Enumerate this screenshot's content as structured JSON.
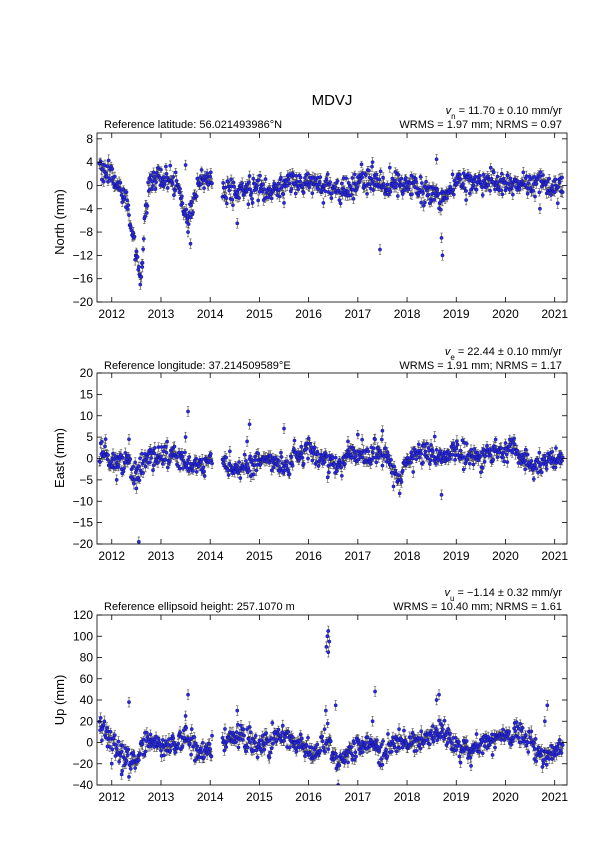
{
  "station": "MDVJ",
  "panels": [
    {
      "id": "north",
      "reference_text": "Reference latitude: 56.021493986°N",
      "velocity_symbol": "v",
      "velocity_subscript": "n",
      "velocity_rest": " = 11.70 ± 0.10 mm/yr",
      "rms_text": "WRMS = 1.97 mm; NRMS = 0.97",
      "ylabel": "North (mm)"
    },
    {
      "id": "east",
      "reference_text": "Reference longitude: 37.214509589°E",
      "velocity_symbol": "v",
      "velocity_subscript": "e",
      "velocity_rest": " = 22.44 ± 0.10 mm/yr",
      "rms_text": "WRMS = 1.91 mm; NRMS = 1.17",
      "ylabel": "East (mm)"
    },
    {
      "id": "up",
      "reference_text": "Reference ellipsoid height: 257.1070 m",
      "velocity_symbol": "v",
      "velocity_subscript": "u",
      "velocity_rest": " = −1.14 ± 0.32 mm/yr",
      "rms_text": "WRMS = 10.40 mm; NRMS = 1.61",
      "ylabel": "Up (mm)"
    }
  ],
  "chart_data": [
    {
      "type": "scatter",
      "panel": "north",
      "title": "MDVJ",
      "ylabel": "North (mm)",
      "xlim": [
        2011.7,
        2021.25
      ],
      "ylim": [
        -20,
        9
      ],
      "xticks": [
        2012,
        2013,
        2014,
        2015,
        2016,
        2017,
        2018,
        2019,
        2020,
        2021
      ],
      "yticks": [
        -20,
        -16,
        -12,
        -8,
        -4,
        0,
        4,
        8
      ],
      "error_bars": true,
      "gaps": [
        [
          2014.05,
          2014.25
        ]
      ],
      "series": [
        {
          "name": "",
          "baseline": [
            [
              2011.75,
              3.5
            ],
            [
              2011.9,
              2.5
            ],
            [
              2012.0,
              1.0
            ],
            [
              2012.1,
              0.0
            ],
            [
              2012.2,
              -1.0
            ],
            [
              2012.3,
              -3.0
            ],
            [
              2012.4,
              -7.0
            ],
            [
              2012.5,
              -11.0
            ],
            [
              2012.55,
              -14.0
            ],
            [
              2012.6,
              -16.0
            ],
            [
              2012.7,
              -2.0
            ],
            [
              2012.8,
              0.5
            ],
            [
              2013.0,
              1.0
            ],
            [
              2013.2,
              0.5
            ],
            [
              2013.35,
              0.0
            ],
            [
              2013.45,
              -4.0
            ],
            [
              2013.55,
              -6.0
            ],
            [
              2013.65,
              -3.0
            ],
            [
              2013.8,
              1.0
            ],
            [
              2014.0,
              0.5
            ],
            [
              2014.3,
              -1.0
            ],
            [
              2014.6,
              -1.5
            ],
            [
              2014.9,
              0.0
            ],
            [
              2015.2,
              -1.0
            ],
            [
              2015.6,
              0.5
            ],
            [
              2016.0,
              0.5
            ],
            [
              2016.4,
              -0.5
            ],
            [
              2016.7,
              -1.0
            ],
            [
              2017.0,
              1.0
            ],
            [
              2017.5,
              0.0
            ],
            [
              2017.8,
              0.5
            ],
            [
              2018.2,
              -0.5
            ],
            [
              2018.5,
              -1.5
            ],
            [
              2018.7,
              -2.5
            ],
            [
              2019.0,
              1.0
            ],
            [
              2019.5,
              0.5
            ],
            [
              2020.0,
              0.5
            ],
            [
              2020.3,
              0.0
            ],
            [
              2020.6,
              0.5
            ],
            [
              2020.9,
              0.0
            ],
            [
              2021.15,
              0.5
            ]
          ],
          "outliers": [
            [
              2012.58,
              -17.0
            ],
            [
              2012.62,
              -14.0
            ],
            [
              2013.5,
              3.5
            ],
            [
              2013.6,
              -10.0
            ],
            [
              2013.55,
              -8.0
            ],
            [
              2014.55,
              -6.5
            ],
            [
              2015.5,
              -3.0
            ],
            [
              2016.3,
              -3.0
            ],
            [
              2017.45,
              -11.0
            ],
            [
              2017.3,
              4.0
            ],
            [
              2018.72,
              -12.0
            ],
            [
              2018.7,
              -9.0
            ],
            [
              2018.6,
              4.5
            ],
            [
              2020.7,
              -4.0
            ],
            [
              2019.2,
              -2.5
            ]
          ]
        }
      ]
    },
    {
      "type": "scatter",
      "panel": "east",
      "title": "",
      "ylabel": "East (mm)",
      "xlim": [
        2011.7,
        2021.25
      ],
      "ylim": [
        -20,
        20
      ],
      "xticks": [
        2012,
        2013,
        2014,
        2015,
        2016,
        2017,
        2018,
        2019,
        2020,
        2021
      ],
      "yticks": [
        -20,
        -15,
        -10,
        -5,
        0,
        5,
        10,
        15,
        20
      ],
      "error_bars": true,
      "gaps": [
        [
          2014.05,
          2014.25
        ]
      ],
      "series": [
        {
          "name": "",
          "baseline": [
            [
              2011.75,
              1.0
            ],
            [
              2012.0,
              0.0
            ],
            [
              2012.3,
              -1.0
            ],
            [
              2012.5,
              -4.0
            ],
            [
              2012.7,
              0.0
            ],
            [
              2013.0,
              1.0
            ],
            [
              2013.4,
              0.0
            ],
            [
              2013.7,
              -2.0
            ],
            [
              2014.0,
              0.0
            ],
            [
              2014.3,
              -1.0
            ],
            [
              2014.6,
              -3.0
            ],
            [
              2014.9,
              -1.0
            ],
            [
              2015.2,
              0.0
            ],
            [
              2015.5,
              -2.0
            ],
            [
              2015.8,
              1.0
            ],
            [
              2016.0,
              2.5
            ],
            [
              2016.3,
              0.0
            ],
            [
              2016.6,
              -2.0
            ],
            [
              2016.9,
              1.5
            ],
            [
              2017.2,
              0.0
            ],
            [
              2017.5,
              2.0
            ],
            [
              2017.85,
              -6.0
            ],
            [
              2018.0,
              0.0
            ],
            [
              2018.3,
              1.5
            ],
            [
              2018.7,
              0.0
            ],
            [
              2019.0,
              2.0
            ],
            [
              2019.4,
              0.0
            ],
            [
              2019.8,
              1.0
            ],
            [
              2020.0,
              2.5
            ],
            [
              2020.3,
              1.0
            ],
            [
              2020.6,
              -2.0
            ],
            [
              2020.9,
              0.0
            ],
            [
              2021.15,
              0.0
            ]
          ],
          "outliers": [
            [
              2012.55,
              -19.5
            ],
            [
              2012.5,
              -7.0
            ],
            [
              2012.35,
              4.5
            ],
            [
              2012.1,
              -5.0
            ],
            [
              2013.55,
              11.0
            ],
            [
              2013.5,
              5.0
            ],
            [
              2014.8,
              8.0
            ],
            [
              2014.75,
              4.0
            ],
            [
              2015.5,
              7.0
            ],
            [
              2016.8,
              4.0
            ],
            [
              2017.5,
              6.5
            ],
            [
              2018.7,
              -8.5
            ],
            [
              2020.4,
              -2.5
            ]
          ]
        }
      ]
    },
    {
      "type": "scatter",
      "panel": "up",
      "title": "",
      "ylabel": "Up (mm)",
      "xlim": [
        2011.7,
        2021.25
      ],
      "ylim": [
        -40,
        120
      ],
      "xticks": [
        2012,
        2013,
        2014,
        2015,
        2016,
        2017,
        2018,
        2019,
        2020,
        2021
      ],
      "yticks": [
        -40,
        -20,
        0,
        20,
        40,
        60,
        80,
        100,
        120
      ],
      "error_bars": true,
      "gaps": [
        [
          2014.05,
          2014.25
        ]
      ],
      "series": [
        {
          "name": "",
          "baseline": [
            [
              2011.75,
              15.0
            ],
            [
              2011.9,
              10.0
            ],
            [
              2012.0,
              0.0
            ],
            [
              2012.2,
              -10.0
            ],
            [
              2012.4,
              -20.0
            ],
            [
              2012.6,
              -5.0
            ],
            [
              2012.9,
              0.0
            ],
            [
              2013.2,
              -5.0
            ],
            [
              2013.5,
              5.0
            ],
            [
              2013.8,
              -10.0
            ],
            [
              2014.0,
              -5.0
            ],
            [
              2014.3,
              0.0
            ],
            [
              2014.6,
              10.0
            ],
            [
              2014.9,
              -5.0
            ],
            [
              2015.2,
              0.0
            ],
            [
              2015.5,
              5.0
            ],
            [
              2015.8,
              0.0
            ],
            [
              2016.1,
              -10.0
            ],
            [
              2016.4,
              0.0
            ],
            [
              2016.6,
              -20.0
            ],
            [
              2016.9,
              -5.0
            ],
            [
              2017.2,
              0.0
            ],
            [
              2017.5,
              -10.0
            ],
            [
              2017.8,
              0.0
            ],
            [
              2018.1,
              0.0
            ],
            [
              2018.4,
              5.0
            ],
            [
              2018.7,
              10.0
            ],
            [
              2019.0,
              0.0
            ],
            [
              2019.3,
              -5.0
            ],
            [
              2019.6,
              0.0
            ],
            [
              2019.9,
              5.0
            ],
            [
              2020.2,
              8.0
            ],
            [
              2020.5,
              0.0
            ],
            [
              2020.8,
              -15.0
            ],
            [
              2021.15,
              -5.0
            ]
          ],
          "outliers": [
            [
              2016.38,
              100.0
            ],
            [
              2016.4,
              105.0
            ],
            [
              2016.42,
              95.0
            ],
            [
              2016.36,
              90.0
            ],
            [
              2016.4,
              85.0
            ],
            [
              2012.35,
              38.0
            ],
            [
              2013.55,
              45.0
            ],
            [
              2013.5,
              25.0
            ],
            [
              2014.55,
              30.0
            ],
            [
              2016.35,
              30.0
            ],
            [
              2016.55,
              35.0
            ],
            [
              2017.35,
              48.0
            ],
            [
              2017.3,
              20.0
            ],
            [
              2018.65,
              45.0
            ],
            [
              2018.6,
              40.0
            ],
            [
              2020.85,
              35.0
            ],
            [
              2020.8,
              20.0
            ],
            [
              2016.6,
              -40.0
            ],
            [
              2012.2,
              -30.0
            ],
            [
              2019.3,
              -22.0
            ]
          ]
        }
      ]
    }
  ]
}
